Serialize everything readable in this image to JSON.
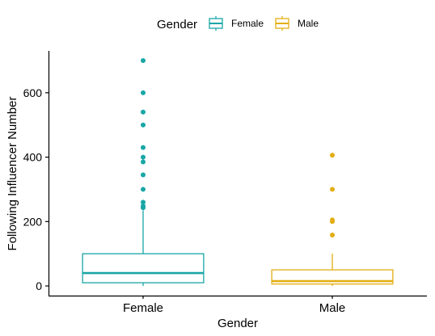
{
  "chart_data": {
    "type": "boxplot",
    "xlabel": "Gender",
    "ylabel": "Following Influencer Number",
    "ylim": [
      -30,
      730
    ],
    "yticks": [
      0,
      200,
      400,
      600
    ],
    "ytick_labels": [
      "0",
      "200",
      "400",
      "600"
    ],
    "grid": false,
    "legend": {
      "title": "Gender",
      "position": "top",
      "entries": [
        "Female",
        "Male"
      ]
    },
    "categories": [
      "Female",
      "Male"
    ],
    "series": [
      {
        "name": "Female",
        "color": "#1AA6A6",
        "q1": 10,
        "median": 40,
        "q3": 100,
        "whisker_low": 0,
        "whisker_high": 235,
        "outliers": [
          700,
          600,
          540,
          500,
          430,
          400,
          385,
          345,
          300,
          260,
          248,
          243
        ]
      },
      {
        "name": "Male",
        "color": "#E3AE14",
        "q1": 6,
        "median": 15,
        "q3": 50,
        "whisker_low": 0,
        "whisker_high": 100,
        "outliers": [
          406,
          300,
          205,
          200,
          158
        ]
      }
    ]
  }
}
